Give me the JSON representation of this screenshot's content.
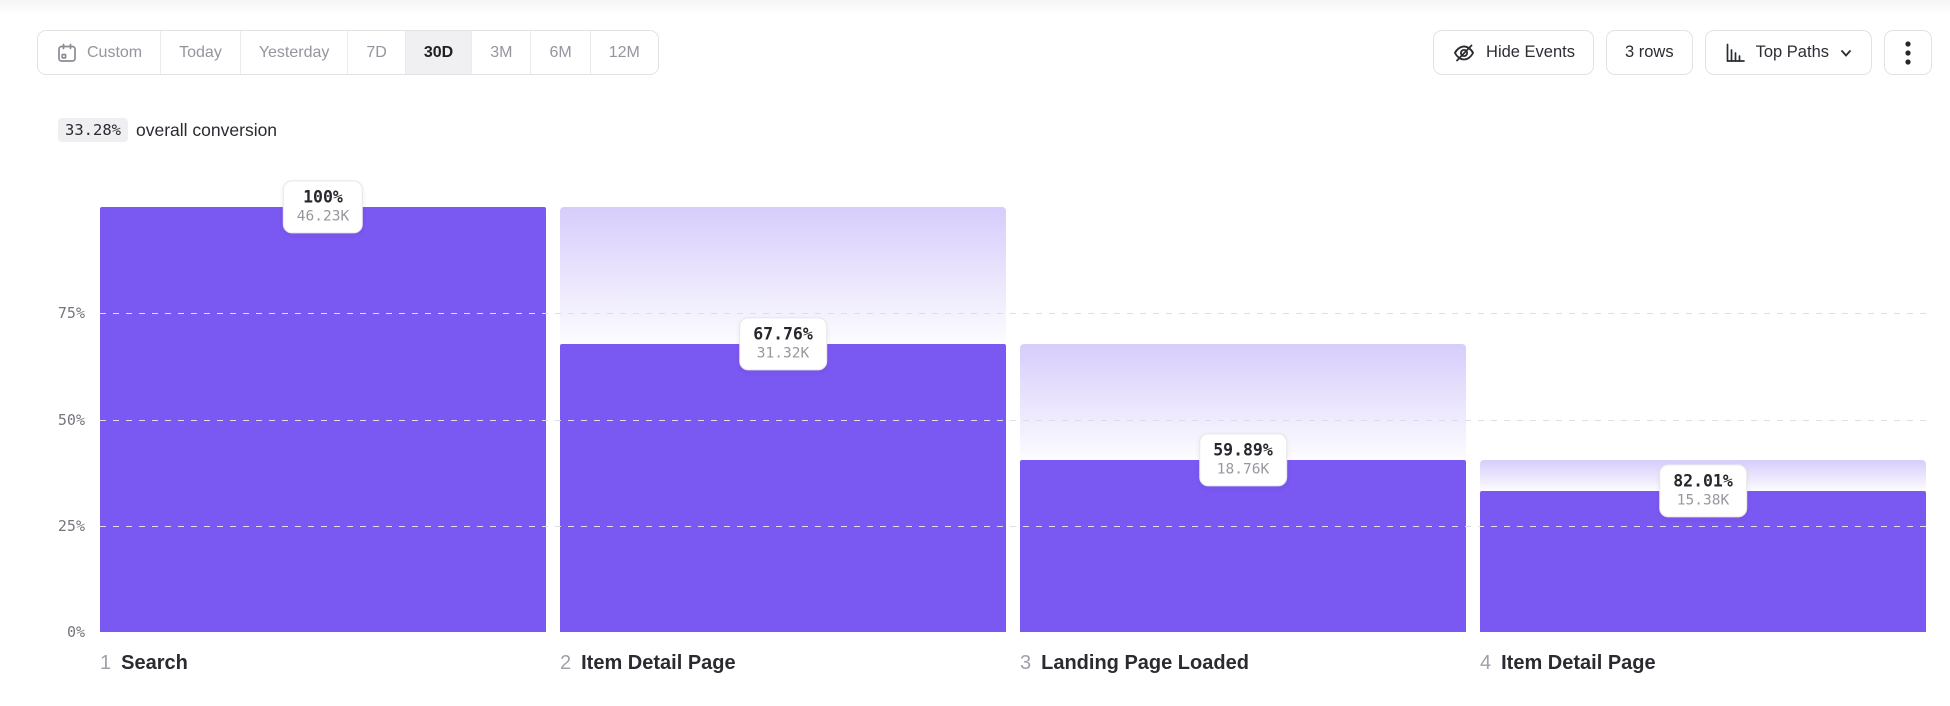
{
  "toolbar": {
    "date_ranges": [
      {
        "label": "Custom",
        "icon": "calendar",
        "selected": false
      },
      {
        "label": "Today",
        "selected": false
      },
      {
        "label": "Yesterday",
        "selected": false
      },
      {
        "label": "7D",
        "selected": false
      },
      {
        "label": "30D",
        "selected": true
      },
      {
        "label": "3M",
        "selected": false
      },
      {
        "label": "6M",
        "selected": false
      },
      {
        "label": "12M",
        "selected": false
      }
    ],
    "hide_events_label": "Hide Events",
    "rows_label": "3 rows",
    "top_paths_label": "Top Paths",
    "icons": [
      "calendar-icon",
      "eye-off-icon",
      "bar-chart-icon",
      "chevron-down-icon",
      "kebab-icon"
    ]
  },
  "summary": {
    "value": "33.28%",
    "label": "overall conversion"
  },
  "chart_data": {
    "type": "bar",
    "subtype": "funnel",
    "title": "33.28% overall conversion",
    "categories": [
      "Search",
      "Item Detail Page",
      "Landing Page Loaded",
      "Item Detail Page"
    ],
    "steps": [
      {
        "num": "1",
        "name": "Search",
        "pct_label": "100%",
        "count_label": "46.23K",
        "overall_pct": 100,
        "prev_overall_pct": 100
      },
      {
        "num": "2",
        "name": "Item Detail Page",
        "pct_label": "67.76%",
        "count_label": "31.32K",
        "overall_pct": 67.76,
        "prev_overall_pct": 100
      },
      {
        "num": "3",
        "name": "Landing Page Loaded",
        "pct_label": "59.89%",
        "count_label": "18.76K",
        "overall_pct": 40.58,
        "prev_overall_pct": 67.76
      },
      {
        "num": "4",
        "name": "Item Detail Page",
        "pct_label": "82.01%",
        "count_label": "15.38K",
        "overall_pct": 33.27,
        "prev_overall_pct": 40.58
      }
    ],
    "y_axis": {
      "range": [
        0,
        100
      ],
      "ticks": [
        {
          "label": "75%",
          "value": 75
        },
        {
          "label": "50%",
          "value": 50
        },
        {
          "label": "25%",
          "value": 25
        },
        {
          "label": "0%",
          "value": 0
        }
      ],
      "gridlines": [
        75,
        50,
        25
      ]
    },
    "legend": null,
    "colors": {
      "bar": "#7a58f2",
      "ghost_gradient_top": "rgba(122,88,242,0.30)"
    }
  }
}
